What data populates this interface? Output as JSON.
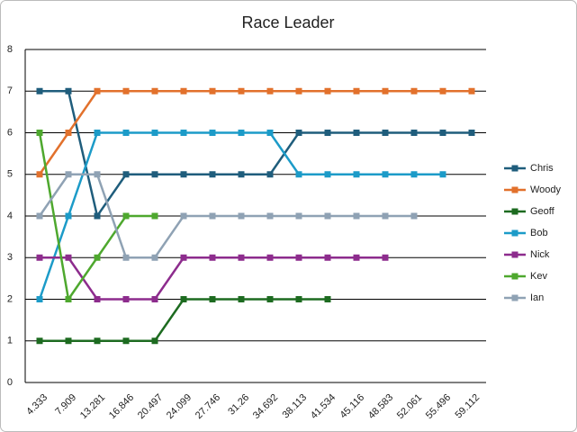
{
  "chart_data": {
    "type": "line",
    "title": "Race Leader",
    "categories": [
      "4.333",
      "7.909",
      "13.281",
      "16.846",
      "20.497",
      "24.099",
      "27.746",
      "31.26",
      "34.692",
      "38.113",
      "41.534",
      "45.116",
      "48.583",
      "52.061",
      "55.496",
      "59.112"
    ],
    "series": [
      {
        "name": "Chris",
        "color": "#1f5d7c",
        "values": [
          7,
          7,
          4,
          5,
          5,
          5,
          5,
          5,
          5,
          6,
          6,
          6,
          6,
          6,
          6,
          6
        ]
      },
      {
        "name": "Woody",
        "color": "#e2712c",
        "values": [
          5,
          6,
          7,
          7,
          7,
          7,
          7,
          7,
          7,
          7,
          7,
          7,
          7,
          7,
          7,
          7
        ]
      },
      {
        "name": "Geoff",
        "color": "#1d6b20",
        "values": [
          1,
          1,
          1,
          1,
          1,
          2,
          2,
          2,
          2,
          2,
          2,
          null,
          null,
          null,
          null,
          null
        ]
      },
      {
        "name": "Bob",
        "color": "#1c9bc8",
        "values": [
          2,
          4,
          6,
          6,
          6,
          6,
          6,
          6,
          6,
          5,
          5,
          5,
          5,
          5,
          5,
          null
        ]
      },
      {
        "name": "Nick",
        "color": "#8d2c8d",
        "values": [
          3,
          3,
          2,
          2,
          2,
          3,
          3,
          3,
          3,
          3,
          3,
          3,
          3,
          null,
          null,
          null
        ]
      },
      {
        "name": "Kev",
        "color": "#4ea82e",
        "values": [
          6,
          2,
          3,
          4,
          4,
          null,
          null,
          null,
          null,
          null,
          null,
          null,
          null,
          null,
          null,
          null
        ]
      },
      {
        "name": "Ian",
        "color": "#8fa2b4",
        "values": [
          4,
          5,
          5,
          3,
          3,
          4,
          4,
          4,
          4,
          4,
          4,
          4,
          4,
          4,
          null,
          null
        ]
      }
    ],
    "ylim": [
      0,
      8
    ],
    "yticks": [
      0,
      1,
      2,
      3,
      4,
      5,
      6,
      7,
      8
    ],
    "grid": true,
    "legend": "right"
  }
}
